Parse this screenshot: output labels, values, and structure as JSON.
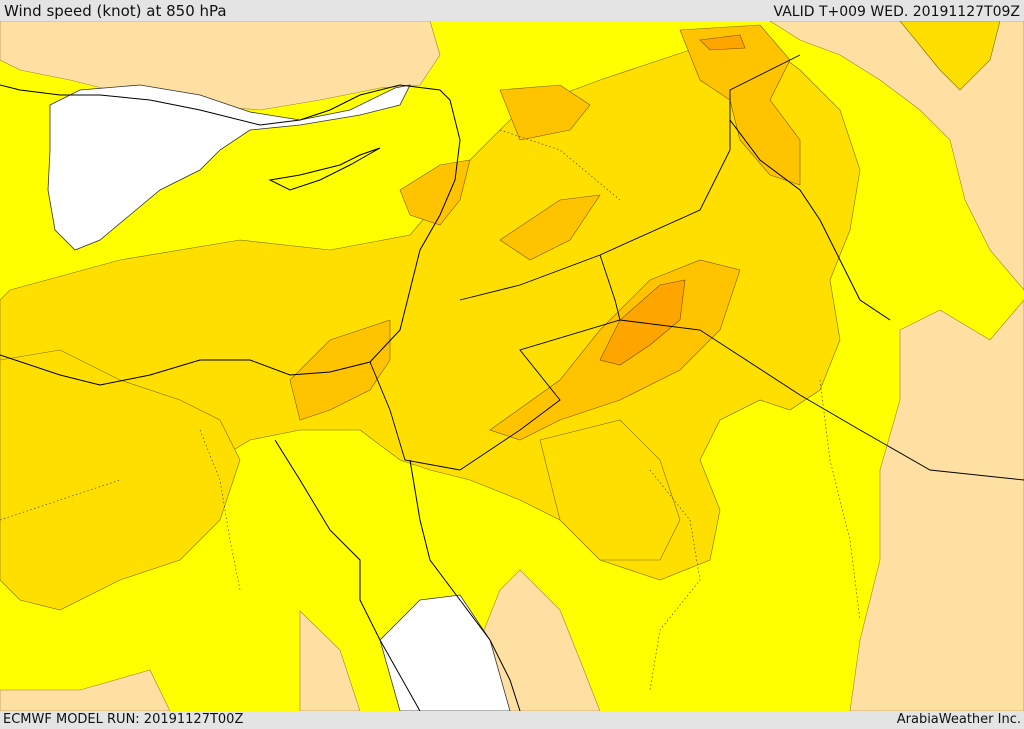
{
  "header": {
    "title": "Wind speed (knot) at 850 hPa",
    "valid": "VALID T+009 WED. 20191127T09Z"
  },
  "footer": {
    "model_run": "ECMWF MODEL RUN: 20191127T00Z",
    "credit": "ArabiaWeather Inc."
  },
  "legend_colors": {
    "calm_land": "#ffe0a3",
    "sea_or_missing": "#ffffff",
    "band_1": "#ffff00",
    "band_2": "#ffdf00",
    "band_3": "#ffc300",
    "band_4": "#ffa500"
  }
}
